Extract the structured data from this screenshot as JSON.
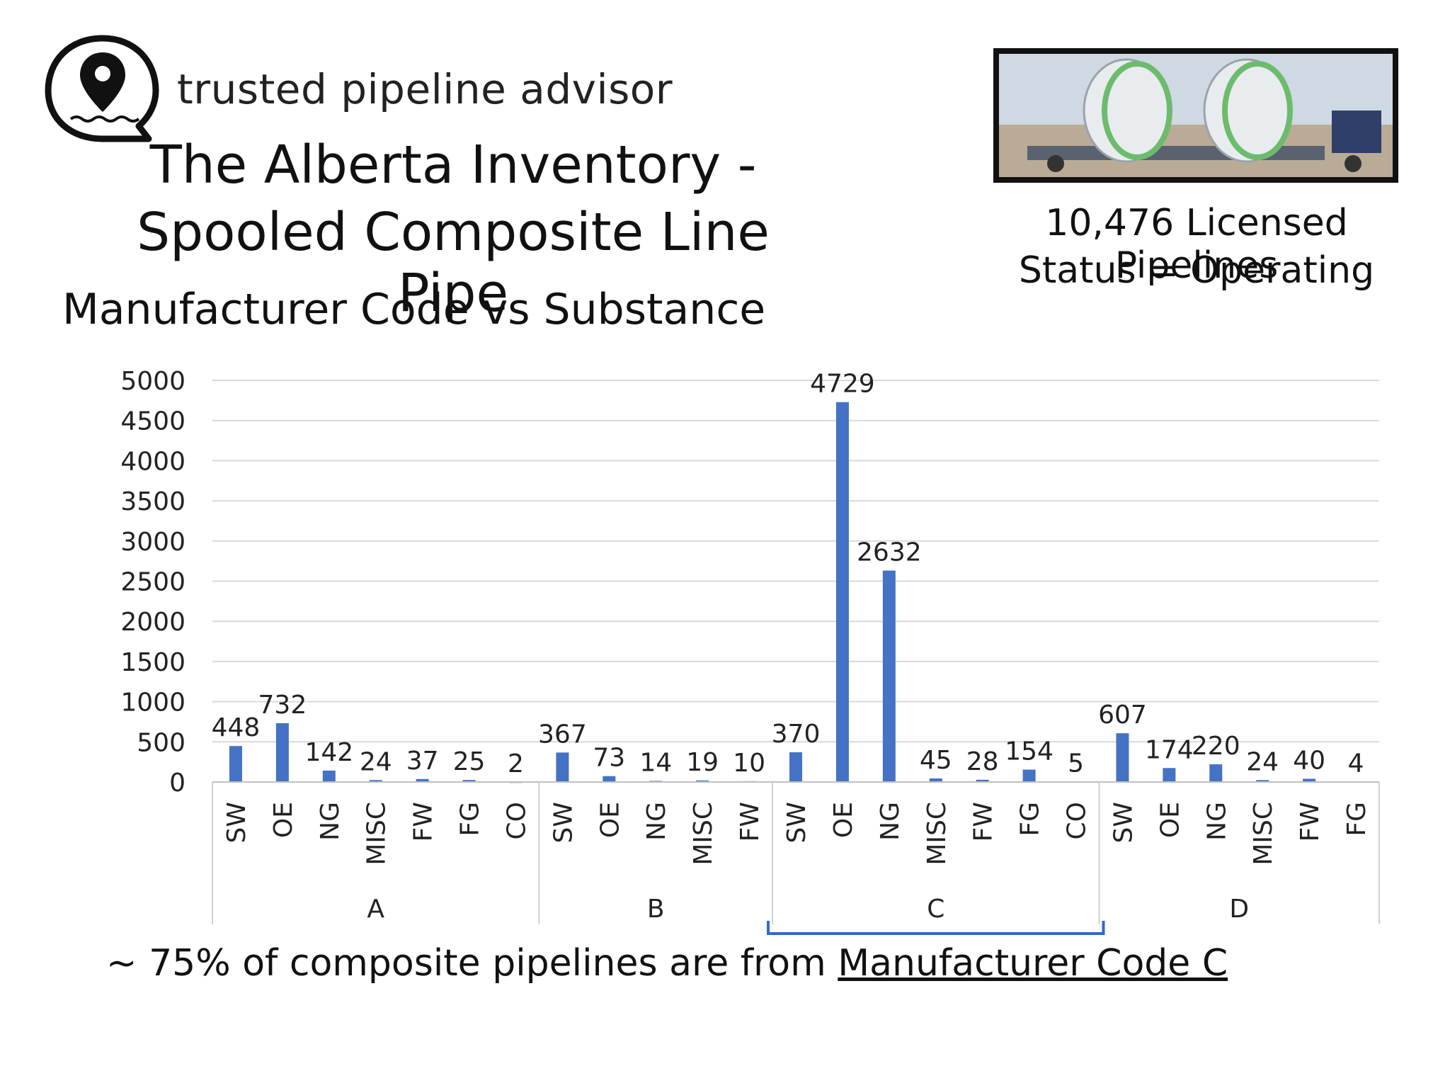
{
  "brand": {
    "name": "trusted pipeline advisor",
    "icon": "map-pin-chat-icon"
  },
  "title": {
    "line1": "The Alberta Inventory -",
    "line2": "Spooled Composite Line Pipe"
  },
  "subtitle": "Manufacturer Code vs Substance",
  "stats": {
    "line1": "10,476 Licensed Pipelines",
    "line2": "Status = Operating"
  },
  "footer": {
    "prefix": "~ 75% of composite pipelines are from ",
    "link": "Manufacturer Code C"
  },
  "colors": {
    "bar": "#4472C4",
    "bracket": "#2E6BC6",
    "grid": "#d9d9d9"
  },
  "chart_data": {
    "type": "bar",
    "yticks": [
      0,
      500,
      1000,
      1500,
      2000,
      2500,
      3000,
      3500,
      4000,
      4500,
      5000
    ],
    "ylim": [
      0,
      5000
    ],
    "grid": true,
    "groups": [
      {
        "name": "A",
        "categories": [
          "SW",
          "OE",
          "NG",
          "MISC",
          "FW",
          "FG",
          "CO"
        ],
        "values": [
          448,
          732,
          142,
          24,
          37,
          25,
          2
        ]
      },
      {
        "name": "B",
        "categories": [
          "SW",
          "OE",
          "NG",
          "MISC",
          "FW"
        ],
        "values": [
          367,
          73,
          14,
          19,
          10
        ]
      },
      {
        "name": "C",
        "categories": [
          "SW",
          "OE",
          "NG",
          "MISC",
          "FW",
          "FG",
          "CO"
        ],
        "values": [
          370,
          4729,
          2632,
          45,
          28,
          154,
          5
        ]
      },
      {
        "name": "D",
        "categories": [
          "SW",
          "OE",
          "NG",
          "MISC",
          "FW",
          "FG"
        ],
        "values": [
          607,
          174,
          220,
          24,
          40,
          4
        ]
      }
    ],
    "highlight_group": "C"
  }
}
